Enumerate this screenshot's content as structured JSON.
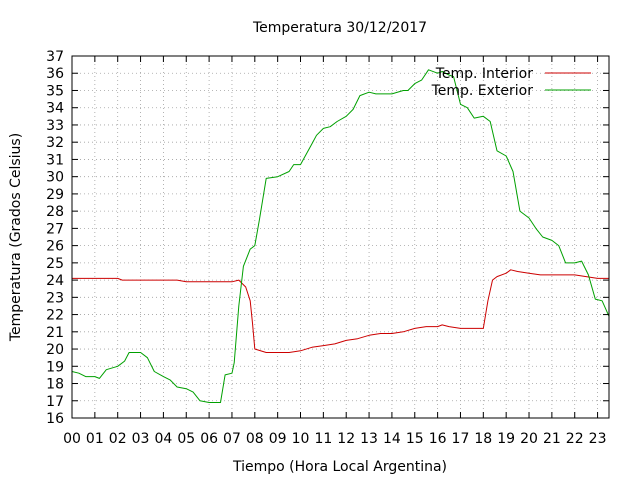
{
  "chart_data": {
    "type": "line",
    "title": "Temperatura 30/12/2017",
    "xlabel": "Tiempo (Hora Local Argentina)",
    "ylabel": "Temperatura (Grados Celsius)",
    "xlim": [
      0,
      23.5
    ],
    "ylim": [
      16,
      37
    ],
    "x_ticks": [
      0,
      1,
      2,
      3,
      4,
      5,
      6,
      7,
      8,
      9,
      10,
      11,
      12,
      13,
      14,
      15,
      16,
      17,
      18,
      19,
      20,
      21,
      22,
      23
    ],
    "x_tick_labels": [
      "00",
      "01",
      "02",
      "03",
      "04",
      "05",
      "06",
      "07",
      "08",
      "09",
      "10",
      "11",
      "12",
      "13",
      "14",
      "15",
      "16",
      "17",
      "18",
      "19",
      "20",
      "21",
      "22",
      "23"
    ],
    "y_ticks": [
      16,
      17,
      18,
      19,
      20,
      21,
      22,
      23,
      24,
      25,
      26,
      27,
      28,
      29,
      30,
      31,
      32,
      33,
      34,
      35,
      36,
      37
    ],
    "grid": true,
    "legend_position": "top-right",
    "series": [
      {
        "name": "Temp. Interior",
        "color": "#cc0000",
        "x": [
          0,
          1,
          2,
          2.2,
          2.4,
          3,
          4,
          4.6,
          5,
          6,
          7,
          7.3,
          7.6,
          7.8,
          7.9,
          8,
          8.5,
          9,
          9.5,
          10,
          10.5,
          11,
          11.5,
          12,
          12.5,
          13,
          13.5,
          14,
          14.5,
          15,
          15.5,
          16,
          16.2,
          16.5,
          17,
          17.5,
          18,
          18.2,
          18.4,
          18.6,
          19,
          19.2,
          19.5,
          20,
          20.5,
          21,
          22,
          23,
          23.5
        ],
        "y": [
          24.1,
          24.1,
          24.1,
          24.0,
          24.0,
          24.0,
          24.0,
          24.0,
          23.9,
          23.9,
          23.9,
          24.0,
          23.6,
          22.8,
          21.5,
          20.0,
          19.8,
          19.8,
          19.8,
          19.9,
          20.1,
          20.2,
          20.3,
          20.5,
          20.6,
          20.8,
          20.9,
          20.9,
          21.0,
          21.2,
          21.3,
          21.3,
          21.4,
          21.3,
          21.2,
          21.2,
          21.2,
          22.8,
          24.0,
          24.2,
          24.4,
          24.6,
          24.5,
          24.4,
          24.3,
          24.3,
          24.3,
          24.1,
          24.1
        ]
      },
      {
        "name": "Temp. Exterior",
        "color": "#00a000",
        "x": [
          0,
          0.3,
          0.6,
          1,
          1.2,
          1.5,
          2,
          2.3,
          2.5,
          3,
          3.3,
          3.6,
          4,
          4.3,
          4.6,
          5,
          5.3,
          5.6,
          6,
          6.3,
          6.5,
          6.7,
          7,
          7.1,
          7.3,
          7.5,
          7.8,
          8,
          8.2,
          8.5,
          9,
          9.5,
          9.7,
          10,
          10.5,
          10.7,
          11,
          11.3,
          11.6,
          12,
          12.3,
          12.6,
          13,
          13.3,
          13.6,
          14,
          14.5,
          14.7,
          15,
          15.3,
          15.6,
          16,
          16.2,
          16.5,
          16.7,
          17,
          17.3,
          17.6,
          18,
          18.3,
          18.6,
          19,
          19.3,
          19.6,
          20,
          20.3,
          20.6,
          21,
          21.3,
          21.6,
          22,
          22.3,
          22.6,
          22.9,
          23.2,
          23.5
        ],
        "y": [
          18.7,
          18.6,
          18.4,
          18.4,
          18.3,
          18.8,
          19.0,
          19.3,
          19.8,
          19.8,
          19.5,
          18.7,
          18.4,
          18.2,
          17.8,
          17.7,
          17.5,
          17.0,
          16.9,
          16.9,
          16.9,
          18.5,
          18.6,
          19.2,
          22.5,
          24.8,
          25.8,
          26.0,
          27.5,
          29.9,
          30.0,
          30.3,
          30.7,
          30.7,
          31.9,
          32.4,
          32.8,
          32.9,
          33.2,
          33.5,
          33.9,
          34.7,
          34.9,
          34.8,
          34.8,
          34.8,
          35.0,
          35.0,
          35.4,
          35.6,
          36.2,
          36.0,
          36.1,
          35.9,
          35.8,
          34.2,
          34.0,
          33.4,
          33.5,
          33.2,
          31.5,
          31.2,
          30.3,
          28.0,
          27.6,
          27.0,
          26.5,
          26.3,
          26.0,
          25.0,
          25.0,
          25.1,
          24.3,
          22.9,
          22.8,
          21.9
        ]
      }
    ]
  }
}
